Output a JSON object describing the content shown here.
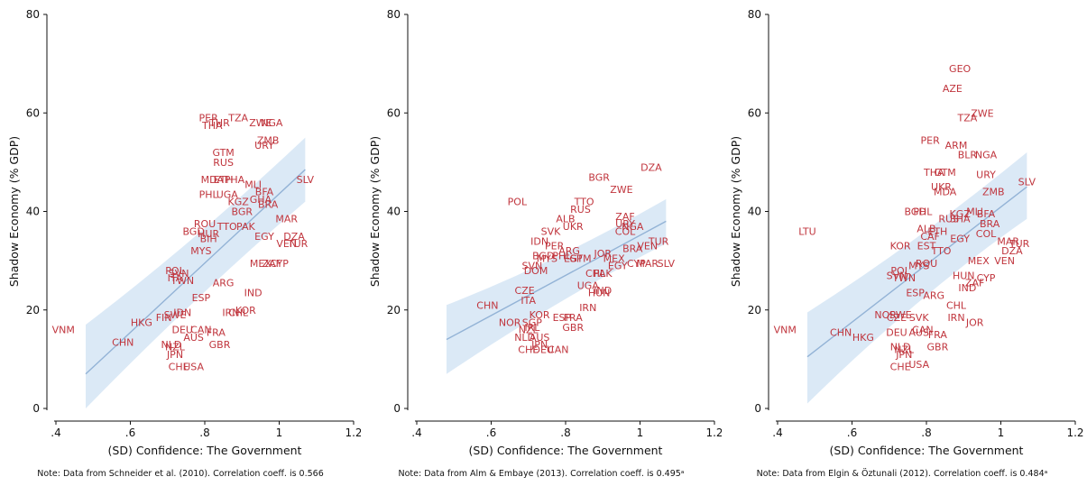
{
  "styles": {
    "band_color": "#cfe2f3",
    "fit_color": "#93b3d6",
    "label_color": "#c0353d",
    "axis_color": "#111111"
  },
  "chart_data": [
    {
      "type": "scatter",
      "xlabel": "(SD) Confidence: The Government",
      "ylabel": "Shadow Economy (% GDP)",
      "xlim": [
        0.4,
        1.2
      ],
      "ylim": [
        0,
        80
      ],
      "xticks": [
        ".4",
        ".6",
        ".8",
        "1",
        "1.2"
      ],
      "yticks": [
        "0",
        "20",
        "40",
        "60",
        "80"
      ],
      "note": "Note: Data from Schneider et al. (2010). Correlation coeff. is 0.566",
      "fit": {
        "x": [
          0.48,
          1.07
        ],
        "y": [
          7,
          48.5
        ]
      },
      "band": {
        "upper": [
          17,
          55
        ],
        "lower": [
          -3,
          42
        ]
      },
      "points": [
        {
          "label": "PER",
          "x": 0.81,
          "y": 59
        },
        {
          "label": "TZA",
          "x": 0.89,
          "y": 59
        },
        {
          "label": "THA",
          "x": 0.82,
          "y": 57.5
        },
        {
          "label": "THR",
          "x": 0.84,
          "y": 58
        },
        {
          "label": "ZWE",
          "x": 0.95,
          "y": 58
        },
        {
          "label": "NGA",
          "x": 0.98,
          "y": 58
        },
        {
          "label": "ZMB",
          "x": 0.97,
          "y": 54.5
        },
        {
          "label": "URY",
          "x": 0.96,
          "y": 53.5
        },
        {
          "label": "GTM",
          "x": 0.85,
          "y": 52
        },
        {
          "label": "RUS",
          "x": 0.85,
          "y": 50
        },
        {
          "label": "MDA",
          "x": 0.82,
          "y": 46.5
        },
        {
          "label": "PHA",
          "x": 0.88,
          "y": 46.5
        },
        {
          "label": "ETH",
          "x": 0.85,
          "y": 46.5
        },
        {
          "label": "MLI",
          "x": 0.93,
          "y": 45.5
        },
        {
          "label": "SLV",
          "x": 1.07,
          "y": 46.5
        },
        {
          "label": "PHL",
          "x": 0.81,
          "y": 43.5
        },
        {
          "label": "UGA",
          "x": 0.86,
          "y": 43.5
        },
        {
          "label": "BFA",
          "x": 0.96,
          "y": 44
        },
        {
          "label": "KGZ",
          "x": 0.89,
          "y": 42
        },
        {
          "label": "GHA",
          "x": 0.95,
          "y": 42.5
        },
        {
          "label": "BRA",
          "x": 0.97,
          "y": 41.5
        },
        {
          "label": "BGR",
          "x": 0.9,
          "y": 40
        },
        {
          "label": "MAR",
          "x": 1.02,
          "y": 38.5
        },
        {
          "label": "ROU",
          "x": 0.8,
          "y": 37.5
        },
        {
          "label": "TTO",
          "x": 0.86,
          "y": 37
        },
        {
          "label": "PAK",
          "x": 0.91,
          "y": 37
        },
        {
          "label": "BGD",
          "x": 0.77,
          "y": 36
        },
        {
          "label": "HUR",
          "x": 0.81,
          "y": 35.5
        },
        {
          "label": "BIH",
          "x": 0.81,
          "y": 34.5
        },
        {
          "label": "EGY",
          "x": 0.96,
          "y": 35
        },
        {
          "label": "DZA",
          "x": 1.04,
          "y": 35
        },
        {
          "label": "VEN",
          "x": 1.02,
          "y": 33.5
        },
        {
          "label": "TUR",
          "x": 1.05,
          "y": 33.5
        },
        {
          "label": "MYS",
          "x": 0.79,
          "y": 32
        },
        {
          "label": "MEX",
          "x": 0.95,
          "y": 29.5
        },
        {
          "label": "ZAF",
          "x": 0.98,
          "y": 29.5
        },
        {
          "label": "CYP",
          "x": 1.0,
          "y": 29.5
        },
        {
          "label": "POL",
          "x": 0.72,
          "y": 28
        },
        {
          "label": "SVN",
          "x": 0.73,
          "y": 27.5
        },
        {
          "label": "ITA",
          "x": 0.72,
          "y": 26.5
        },
        {
          "label": "TWN",
          "x": 0.74,
          "y": 26
        },
        {
          "label": "ARG",
          "x": 0.85,
          "y": 25.5
        },
        {
          "label": "IND",
          "x": 0.93,
          "y": 23.5
        },
        {
          "label": "ESP",
          "x": 0.79,
          "y": 22.5
        },
        {
          "label": "CHL",
          "x": 0.89,
          "y": 19.5
        },
        {
          "label": "KOR",
          "x": 0.91,
          "y": 20
        },
        {
          "label": "IRN",
          "x": 0.87,
          "y": 19.5
        },
        {
          "label": "IDN",
          "x": 0.74,
          "y": 19.5
        },
        {
          "label": "SWE",
          "x": 0.72,
          "y": 19
        },
        {
          "label": "FIN",
          "x": 0.69,
          "y": 18.5
        },
        {
          "label": "HKG",
          "x": 0.63,
          "y": 17.5
        },
        {
          "label": "VNM",
          "x": 0.42,
          "y": 16
        },
        {
          "label": "DEU",
          "x": 0.74,
          "y": 16
        },
        {
          "label": "CAN",
          "x": 0.79,
          "y": 16
        },
        {
          "label": "FRA",
          "x": 0.83,
          "y": 15.5
        },
        {
          "label": "AUS",
          "x": 0.77,
          "y": 14.5
        },
        {
          "label": "CHN",
          "x": 0.58,
          "y": 13.5
        },
        {
          "label": "GBR",
          "x": 0.84,
          "y": 13
        },
        {
          "label": "NLD",
          "x": 0.71,
          "y": 13
        },
        {
          "label": "NZL",
          "x": 0.72,
          "y": 12.5
        },
        {
          "label": "JPN",
          "x": 0.72,
          "y": 11
        },
        {
          "label": "CHE",
          "x": 0.73,
          "y": 8.5
        },
        {
          "label": "USA",
          "x": 0.77,
          "y": 8.5
        }
      ]
    },
    {
      "type": "scatter",
      "xlabel": "(SD) Confidence: The Government",
      "ylabel": "Shadow Economy (% GDP)",
      "xlim": [
        0.4,
        1.2
      ],
      "ylim": [
        0,
        80
      ],
      "xticks": [
        ".4",
        ".6",
        ".8",
        "1",
        "1.2"
      ],
      "yticks": [
        "0",
        "20",
        "40",
        "60",
        "80"
      ],
      "note": "Note: Data from Alm & Embaye (2013). Correlation coeff. is 0.495ᵃ",
      "fit": {
        "x": [
          0.48,
          1.07
        ],
        "y": [
          14,
          38
        ]
      },
      "band": {
        "upper": [
          21,
          42.5
        ],
        "lower": [
          7,
          33.5
        ]
      },
      "points": [
        {
          "label": "DZA",
          "x": 1.03,
          "y": 49
        },
        {
          "label": "BGR",
          "x": 0.89,
          "y": 47
        },
        {
          "label": "ZWE",
          "x": 0.95,
          "y": 44.5
        },
        {
          "label": "POL",
          "x": 0.67,
          "y": 42
        },
        {
          "label": "TTO",
          "x": 0.85,
          "y": 42
        },
        {
          "label": "RUS",
          "x": 0.84,
          "y": 40.5
        },
        {
          "label": "ZAF",
          "x": 0.96,
          "y": 39
        },
        {
          "label": "ALB",
          "x": 0.8,
          "y": 38.5
        },
        {
          "label": "URY",
          "x": 0.96,
          "y": 37.5
        },
        {
          "label": "UKR",
          "x": 0.82,
          "y": 37
        },
        {
          "label": "NGA",
          "x": 0.98,
          "y": 37
        },
        {
          "label": "SVK",
          "x": 0.76,
          "y": 36
        },
        {
          "label": "COL",
          "x": 0.96,
          "y": 36
        },
        {
          "label": "TUR",
          "x": 1.05,
          "y": 34
        },
        {
          "label": "IDN",
          "x": 0.73,
          "y": 34
        },
        {
          "label": "VEN",
          "x": 1.02,
          "y": 33
        },
        {
          "label": "PER",
          "x": 0.77,
          "y": 33
        },
        {
          "label": "ARG",
          "x": 0.81,
          "y": 32
        },
        {
          "label": "BRA",
          "x": 0.98,
          "y": 32.5
        },
        {
          "label": "JOR",
          "x": 0.9,
          "y": 31.5
        },
        {
          "label": "BGD",
          "x": 0.74,
          "y": 31
        },
        {
          "label": "PHL",
          "x": 0.79,
          "y": 31
        },
        {
          "label": "MYS",
          "x": 0.75,
          "y": 30.5
        },
        {
          "label": "ESP",
          "x": 0.82,
          "y": 30.5
        },
        {
          "label": "GTM",
          "x": 0.84,
          "y": 30.5
        },
        {
          "label": "MEX",
          "x": 0.93,
          "y": 30.5
        },
        {
          "label": "CYP",
          "x": 0.99,
          "y": 29.5
        },
        {
          "label": "MAR",
          "x": 1.02,
          "y": 29.5
        },
        {
          "label": "SLV",
          "x": 1.07,
          "y": 29.5
        },
        {
          "label": "EGY",
          "x": 0.94,
          "y": 29
        },
        {
          "label": "SVN",
          "x": 0.71,
          "y": 29
        },
        {
          "label": "DOM",
          "x": 0.72,
          "y": 28
        },
        {
          "label": "CHL",
          "x": 0.88,
          "y": 27.5
        },
        {
          "label": "PAK",
          "x": 0.9,
          "y": 27.5
        },
        {
          "label": "UGA",
          "x": 0.86,
          "y": 25
        },
        {
          "label": "IND",
          "x": 0.9,
          "y": 24
        },
        {
          "label": "HUN",
          "x": 0.89,
          "y": 23.5
        },
        {
          "label": "CZE",
          "x": 0.69,
          "y": 24
        },
        {
          "label": "ITA",
          "x": 0.7,
          "y": 22
        },
        {
          "label": "CHN",
          "x": 0.59,
          "y": 21
        },
        {
          "label": "IRN",
          "x": 0.86,
          "y": 20.5
        },
        {
          "label": "KOR",
          "x": 0.73,
          "y": 19
        },
        {
          "label": "ESP",
          "x": 0.79,
          "y": 18.5
        },
        {
          "label": "FRA",
          "x": 0.82,
          "y": 18.5
        },
        {
          "label": "NOR",
          "x": 0.65,
          "y": 17.5
        },
        {
          "label": "SGP",
          "x": 0.71,
          "y": 17.5
        },
        {
          "label": "GBR",
          "x": 0.82,
          "y": 16.5
        },
        {
          "label": "IRL",
          "x": 0.71,
          "y": 16.5
        },
        {
          "label": "NZL",
          "x": 0.7,
          "y": 16
        },
        {
          "label": "NLD",
          "x": 0.69,
          "y": 14.5
        },
        {
          "label": "AUS",
          "x": 0.73,
          "y": 14.5
        },
        {
          "label": "JPN",
          "x": 0.73,
          "y": 13
        },
        {
          "label": "CHE",
          "x": 0.7,
          "y": 12
        },
        {
          "label": "DEU",
          "x": 0.74,
          "y": 12
        },
        {
          "label": "CAN",
          "x": 0.78,
          "y": 12
        }
      ]
    },
    {
      "type": "scatter",
      "xlabel": "(SD) Confidence: The Government",
      "ylabel": "Shadow Economy (% GDP)",
      "xlim": [
        0.4,
        1.2
      ],
      "ylim": [
        0,
        80
      ],
      "xticks": [
        ".4",
        ".6",
        ".8",
        "1",
        "1.2"
      ],
      "yticks": [
        "0",
        "20",
        "40",
        "60",
        "80"
      ],
      "note": "Note: Data from Elgin & Öztunali (2012). Correlation coeff. is 0.484ᵃ",
      "fit": {
        "x": [
          0.48,
          1.07
        ],
        "y": [
          10.5,
          45
        ]
      },
      "band": {
        "upper": [
          19.5,
          52
        ],
        "lower": [
          1,
          38.5
        ]
      },
      "points": [
        {
          "label": "GEO",
          "x": 0.89,
          "y": 69
        },
        {
          "label": "AZE",
          "x": 0.87,
          "y": 65
        },
        {
          "label": "TZA",
          "x": 0.91,
          "y": 59
        },
        {
          "label": "ZWE",
          "x": 0.95,
          "y": 60
        },
        {
          "label": "PER",
          "x": 0.81,
          "y": 54.5
        },
        {
          "label": "ARM",
          "x": 0.88,
          "y": 53.5
        },
        {
          "label": "BLR",
          "x": 0.91,
          "y": 51.5
        },
        {
          "label": "NGA",
          "x": 0.96,
          "y": 51.5
        },
        {
          "label": "THA",
          "x": 0.82,
          "y": 48
        },
        {
          "label": "GTM",
          "x": 0.85,
          "y": 48
        },
        {
          "label": "URY",
          "x": 0.96,
          "y": 47.5
        },
        {
          "label": "SLV",
          "x": 1.07,
          "y": 46
        },
        {
          "label": "UKR",
          "x": 0.84,
          "y": 45
        },
        {
          "label": "MDA",
          "x": 0.85,
          "y": 44
        },
        {
          "label": "ZMB",
          "x": 0.98,
          "y": 44
        },
        {
          "label": "LTU",
          "x": 0.48,
          "y": 36
        },
        {
          "label": "BGD",
          "x": 0.77,
          "y": 40
        },
        {
          "label": "PHL",
          "x": 0.79,
          "y": 40
        },
        {
          "label": "KGZ",
          "x": 0.89,
          "y": 39.5
        },
        {
          "label": "MLI",
          "x": 0.93,
          "y": 40
        },
        {
          "label": "BFA",
          "x": 0.96,
          "y": 39.5
        },
        {
          "label": "RUS",
          "x": 0.86,
          "y": 38.5
        },
        {
          "label": "SHA",
          "x": 0.89,
          "y": 38.5
        },
        {
          "label": "BRA",
          "x": 0.97,
          "y": 37.5
        },
        {
          "label": "ALB",
          "x": 0.8,
          "y": 36.5
        },
        {
          "label": "ETH",
          "x": 0.83,
          "y": 36
        },
        {
          "label": "COL",
          "x": 0.96,
          "y": 35.5
        },
        {
          "label": "CAF",
          "x": 0.81,
          "y": 35
        },
        {
          "label": "EGY",
          "x": 0.89,
          "y": 34.5
        },
        {
          "label": "KOR",
          "x": 0.73,
          "y": 33
        },
        {
          "label": "EST",
          "x": 0.8,
          "y": 33
        },
        {
          "label": "MAR",
          "x": 1.02,
          "y": 34
        },
        {
          "label": "TUR",
          "x": 1.05,
          "y": 33.5
        },
        {
          "label": "TTO",
          "x": 0.84,
          "y": 32
        },
        {
          "label": "DZA",
          "x": 1.03,
          "y": 32
        },
        {
          "label": "VEN",
          "x": 1.01,
          "y": 30
        },
        {
          "label": "MEX",
          "x": 0.94,
          "y": 30
        },
        {
          "label": "ROU",
          "x": 0.8,
          "y": 29.5
        },
        {
          "label": "MYS",
          "x": 0.78,
          "y": 29
        },
        {
          "label": "POL",
          "x": 0.73,
          "y": 28
        },
        {
          "label": "SVN",
          "x": 0.72,
          "y": 27
        },
        {
          "label": "TWN",
          "x": 0.74,
          "y": 26.5
        },
        {
          "label": "HUN",
          "x": 0.9,
          "y": 27
        },
        {
          "label": "CYP",
          "x": 0.96,
          "y": 26.5
        },
        {
          "label": "ZAF",
          "x": 0.93,
          "y": 25.5
        },
        {
          "label": "IND",
          "x": 0.91,
          "y": 24.5
        },
        {
          "label": "ESP",
          "x": 0.77,
          "y": 23.5
        },
        {
          "label": "ARG",
          "x": 0.82,
          "y": 23
        },
        {
          "label": "CHL",
          "x": 0.88,
          "y": 21
        },
        {
          "label": "NOR",
          "x": 0.69,
          "y": 19
        },
        {
          "label": "SWE",
          "x": 0.73,
          "y": 19
        },
        {
          "label": "CZE",
          "x": 0.72,
          "y": 18.5
        },
        {
          "label": "SVK",
          "x": 0.78,
          "y": 18.5
        },
        {
          "label": "IRN",
          "x": 0.88,
          "y": 18.5
        },
        {
          "label": "JOR",
          "x": 0.93,
          "y": 17.5
        },
        {
          "label": "VNM",
          "x": 0.42,
          "y": 16
        },
        {
          "label": "CHN",
          "x": 0.57,
          "y": 15.5
        },
        {
          "label": "HKG",
          "x": 0.63,
          "y": 14.5
        },
        {
          "label": "DEU",
          "x": 0.72,
          "y": 15.5
        },
        {
          "label": "AUS",
          "x": 0.78,
          "y": 15.5
        },
        {
          "label": "FRA",
          "x": 0.83,
          "y": 15
        },
        {
          "label": "CAN",
          "x": 0.79,
          "y": 16
        },
        {
          "label": "NLD",
          "x": 0.73,
          "y": 12.5
        },
        {
          "label": "NZL",
          "x": 0.74,
          "y": 12
        },
        {
          "label": "GBR",
          "x": 0.83,
          "y": 12.5
        },
        {
          "label": "JPN",
          "x": 0.74,
          "y": 11
        },
        {
          "label": "USA",
          "x": 0.78,
          "y": 9
        },
        {
          "label": "CHE",
          "x": 0.73,
          "y": 8.5
        }
      ]
    }
  ]
}
